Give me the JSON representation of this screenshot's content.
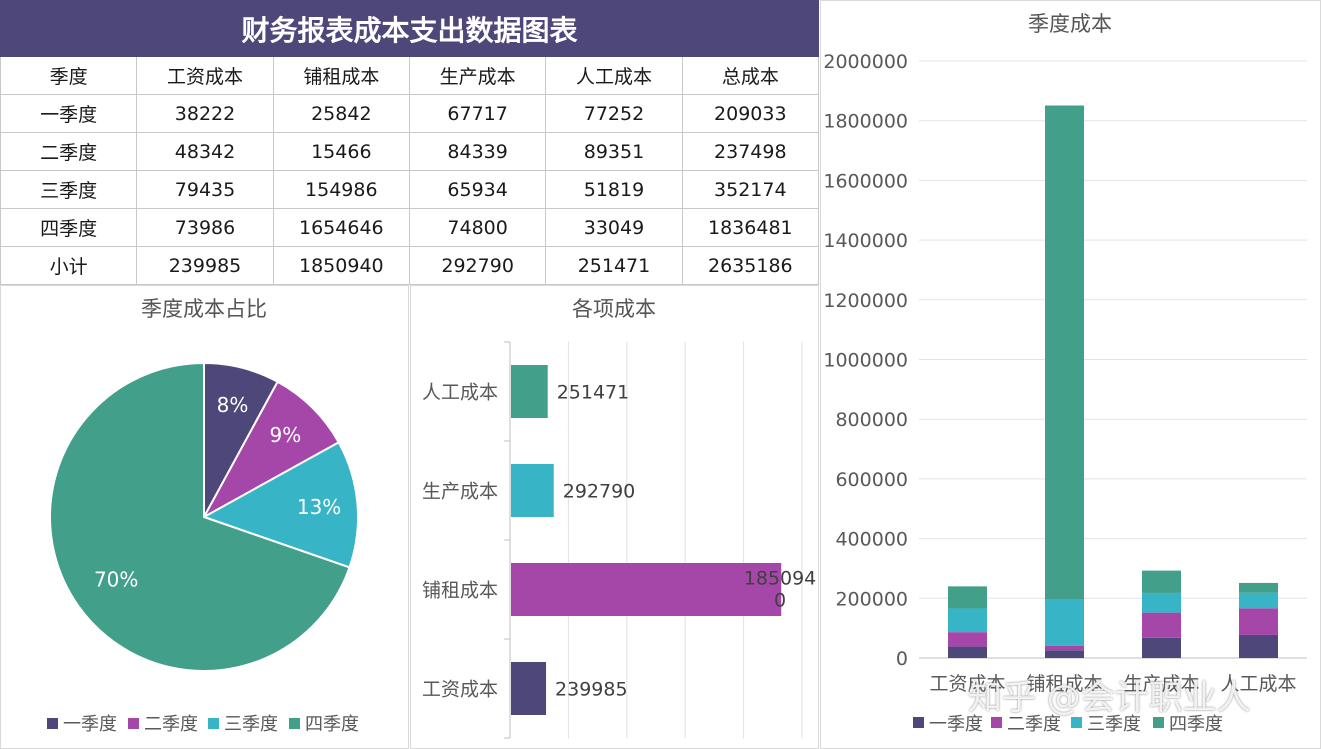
{
  "table": {
    "title": "财务报表成本支出数据图表",
    "headers": [
      "季度",
      "工资成本",
      "铺租成本",
      "生产成本",
      "人工成本",
      "总成本"
    ],
    "rows": [
      [
        "一季度",
        "38222",
        "25842",
        "67717",
        "77252",
        "209033"
      ],
      [
        "二季度",
        "48342",
        "15466",
        "84339",
        "89351",
        "237498"
      ],
      [
        "三季度",
        "79435",
        "154986",
        "65934",
        "51819",
        "352174"
      ],
      [
        "四季度",
        "73986",
        "1654646",
        "74800",
        "33049",
        "1836481"
      ],
      [
        "小计",
        "239985",
        "1850940",
        "292790",
        "251471",
        "2635186"
      ]
    ]
  },
  "colors": {
    "q1": "#4e477a",
    "q2": "#a447a8",
    "q3": "#37b4c6",
    "q4": "#429f8a",
    "header": "#4e477a"
  },
  "chart_data": [
    {
      "type": "pie",
      "title": "季度成本占比",
      "categories": [
        "一季度",
        "二季度",
        "三季度",
        "四季度"
      ],
      "values": [
        209033,
        237498,
        352174,
        1836481
      ],
      "labels": [
        "8%",
        "9%",
        "13%",
        "70%"
      ],
      "legend": "bottom"
    },
    {
      "type": "bar",
      "orientation": "horizontal",
      "title": "各项成本",
      "categories": [
        "工资成本",
        "铺租成本",
        "生产成本",
        "人工成本"
      ],
      "values": [
        239985,
        1850940,
        292790,
        251471
      ],
      "data_labels": [
        "239985",
        "185094\n0",
        "292790",
        "251471"
      ],
      "xlim": [
        0,
        2000000
      ]
    },
    {
      "type": "bar",
      "stacked": true,
      "title": "季度成本",
      "categories": [
        "工资成本",
        "铺租成本",
        "生产成本",
        "人工成本"
      ],
      "series": [
        {
          "name": "一季度",
          "values": [
            38222,
            25842,
            67717,
            77252
          ]
        },
        {
          "name": "二季度",
          "values": [
            48342,
            15466,
            84339,
            89351
          ]
        },
        {
          "name": "三季度",
          "values": [
            79435,
            154986,
            65934,
            51819
          ]
        },
        {
          "name": "四季度",
          "values": [
            73986,
            1654646,
            74800,
            33049
          ]
        }
      ],
      "ylim": [
        0,
        2000000
      ],
      "yticks": [
        "0",
        "200000",
        "400000",
        "600000",
        "800000",
        "1000000",
        "1200000",
        "1400000",
        "1600000",
        "1800000",
        "2000000"
      ],
      "grid": true,
      "legend": "bottom"
    }
  ],
  "watermark": "知乎 @会计职业人"
}
